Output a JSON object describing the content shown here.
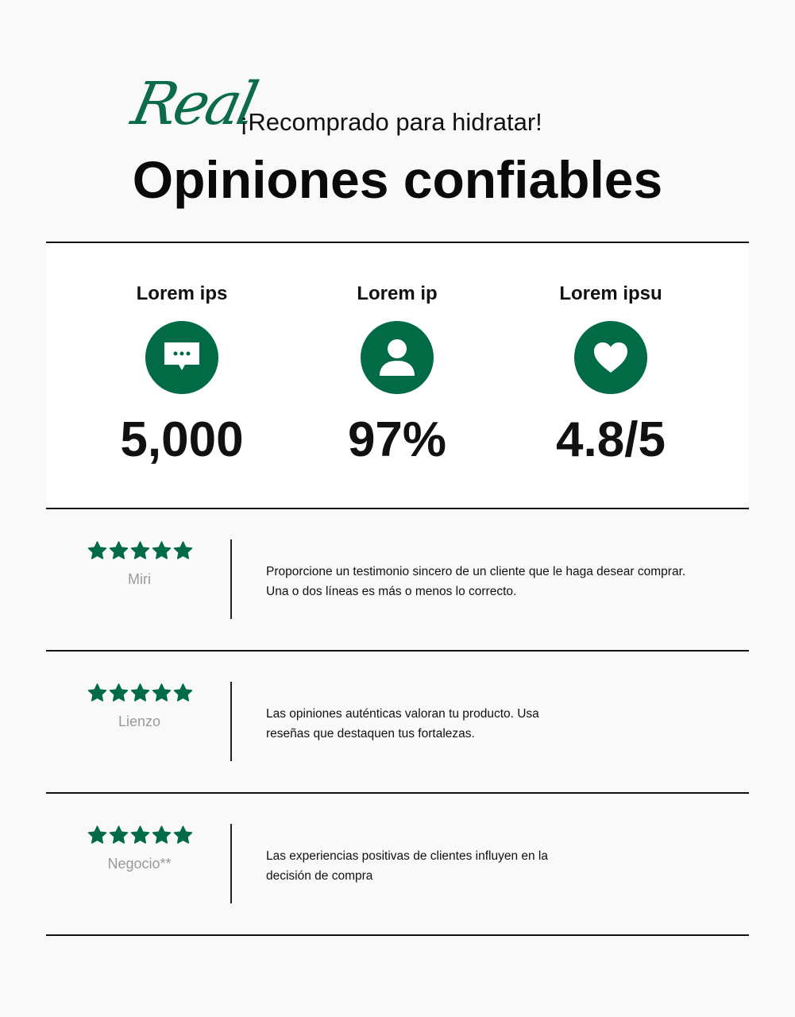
{
  "header": {
    "script_word": "Real",
    "subtitle": "¡Recomprado para hidratar!",
    "title": "Opiniones confiables"
  },
  "stats": [
    {
      "label": "Lorem ips",
      "icon": "chat-bubble-icon",
      "value": "5,000"
    },
    {
      "label": "Lorem ip",
      "icon": "user-icon",
      "value": "97%"
    },
    {
      "label": "Lorem ipsu",
      "icon": "heart-icon",
      "value": "4.8/5"
    }
  ],
  "reviews": [
    {
      "rating": 5,
      "name": "Miri",
      "text": "Proporcione un testimonio sincero de un cliente que le haga desear comprar.\nUna o dos líneas es más o menos lo correcto."
    },
    {
      "rating": 5,
      "name": "Lienzo",
      "text": "Las opiniones auténticas valoran tu producto. Usa\nreseñas que destaquen tus fortalezas."
    },
    {
      "rating": 5,
      "name": "Negocio**",
      "text": "Las experiencias positivas de clientes influyen en la\ndecisión de compra"
    }
  ],
  "colors": {
    "accent": "#006b45",
    "background": "#f9f9f9"
  }
}
